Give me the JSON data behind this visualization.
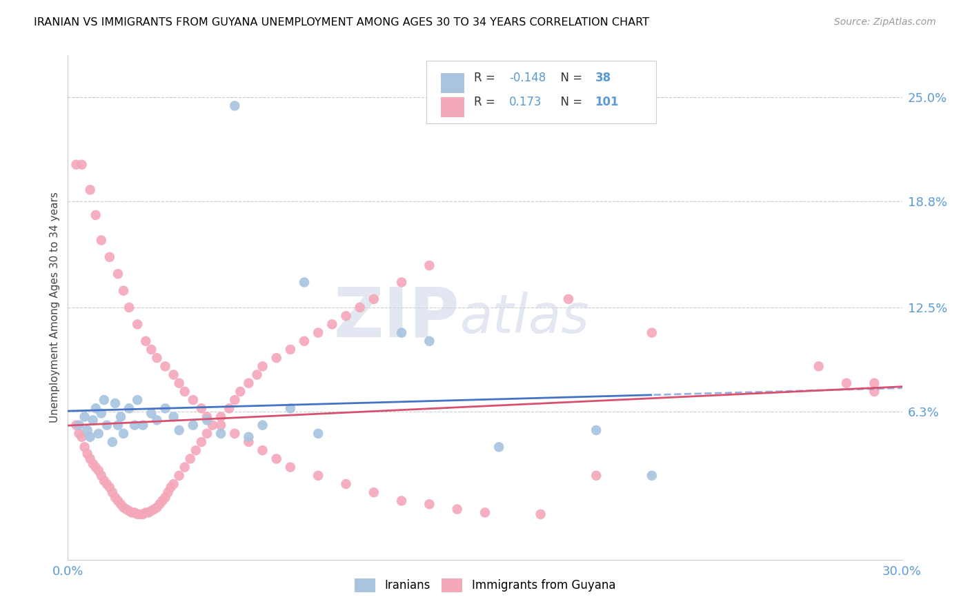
{
  "title": "IRANIAN VS IMMIGRANTS FROM GUYANA UNEMPLOYMENT AMONG AGES 30 TO 34 YEARS CORRELATION CHART",
  "source": "Source: ZipAtlas.com",
  "ylabel": "Unemployment Among Ages 30 to 34 years",
  "ytick_labels": [
    "25.0%",
    "18.8%",
    "12.5%",
    "6.3%"
  ],
  "ytick_values": [
    0.25,
    0.188,
    0.125,
    0.063
  ],
  "xmin": 0.0,
  "xmax": 0.3,
  "ymin": -0.025,
  "ymax": 0.275,
  "color_iranian": "#a8c4e0",
  "color_guyana": "#f4a7b9",
  "color_line_iranian": "#4472c4",
  "color_line_guyana": "#d94f6e",
  "legend_R_iranian": "-0.148",
  "legend_N_iranian": "38",
  "legend_R_guyana": "0.173",
  "legend_N_guyana": "101",
  "watermark_zip": "ZIP",
  "watermark_atlas": "atlas",
  "iranian_x": [
    0.004,
    0.006,
    0.007,
    0.008,
    0.009,
    0.01,
    0.011,
    0.012,
    0.013,
    0.014,
    0.016,
    0.017,
    0.018,
    0.019,
    0.02,
    0.022,
    0.024,
    0.025,
    0.027,
    0.03,
    0.032,
    0.035,
    0.038,
    0.04,
    0.045,
    0.05,
    0.055,
    0.06,
    0.065,
    0.07,
    0.08,
    0.085,
    0.09,
    0.12,
    0.13,
    0.155,
    0.19,
    0.21
  ],
  "iranian_y": [
    0.055,
    0.06,
    0.052,
    0.048,
    0.058,
    0.065,
    0.05,
    0.062,
    0.07,
    0.055,
    0.045,
    0.068,
    0.055,
    0.06,
    0.05,
    0.065,
    0.055,
    0.07,
    0.055,
    0.062,
    0.058,
    0.065,
    0.06,
    0.052,
    0.055,
    0.058,
    0.05,
    0.245,
    0.048,
    0.055,
    0.065,
    0.14,
    0.05,
    0.11,
    0.105,
    0.042,
    0.052,
    0.025
  ],
  "guyana_x": [
    0.003,
    0.004,
    0.005,
    0.006,
    0.007,
    0.008,
    0.009,
    0.01,
    0.011,
    0.012,
    0.013,
    0.014,
    0.015,
    0.016,
    0.017,
    0.018,
    0.019,
    0.02,
    0.021,
    0.022,
    0.023,
    0.024,
    0.025,
    0.026,
    0.027,
    0.028,
    0.029,
    0.03,
    0.031,
    0.032,
    0.033,
    0.034,
    0.035,
    0.036,
    0.037,
    0.038,
    0.04,
    0.042,
    0.044,
    0.046,
    0.048,
    0.05,
    0.052,
    0.055,
    0.058,
    0.06,
    0.062,
    0.065,
    0.068,
    0.07,
    0.075,
    0.08,
    0.085,
    0.09,
    0.095,
    0.1,
    0.105,
    0.11,
    0.12,
    0.13,
    0.003,
    0.005,
    0.008,
    0.01,
    0.012,
    0.015,
    0.018,
    0.02,
    0.022,
    0.025,
    0.028,
    0.03,
    0.032,
    0.035,
    0.038,
    0.04,
    0.042,
    0.045,
    0.048,
    0.05,
    0.055,
    0.06,
    0.065,
    0.07,
    0.075,
    0.08,
    0.09,
    0.1,
    0.11,
    0.12,
    0.13,
    0.14,
    0.15,
    0.17,
    0.18,
    0.19,
    0.21,
    0.27,
    0.28,
    0.29,
    0.29
  ],
  "guyana_y": [
    0.055,
    0.05,
    0.048,
    0.042,
    0.038,
    0.035,
    0.032,
    0.03,
    0.028,
    0.025,
    0.022,
    0.02,
    0.018,
    0.015,
    0.012,
    0.01,
    0.008,
    0.006,
    0.005,
    0.004,
    0.003,
    0.003,
    0.002,
    0.002,
    0.002,
    0.003,
    0.003,
    0.004,
    0.005,
    0.006,
    0.008,
    0.01,
    0.012,
    0.015,
    0.018,
    0.02,
    0.025,
    0.03,
    0.035,
    0.04,
    0.045,
    0.05,
    0.055,
    0.06,
    0.065,
    0.07,
    0.075,
    0.08,
    0.085,
    0.09,
    0.095,
    0.1,
    0.105,
    0.11,
    0.115,
    0.12,
    0.125,
    0.13,
    0.14,
    0.15,
    0.21,
    0.21,
    0.195,
    0.18,
    0.165,
    0.155,
    0.145,
    0.135,
    0.125,
    0.115,
    0.105,
    0.1,
    0.095,
    0.09,
    0.085,
    0.08,
    0.075,
    0.07,
    0.065,
    0.06,
    0.055,
    0.05,
    0.045,
    0.04,
    0.035,
    0.03,
    0.025,
    0.02,
    0.015,
    0.01,
    0.008,
    0.005,
    0.003,
    0.002,
    0.13,
    0.025,
    0.11,
    0.09,
    0.08,
    0.08,
    0.075
  ]
}
